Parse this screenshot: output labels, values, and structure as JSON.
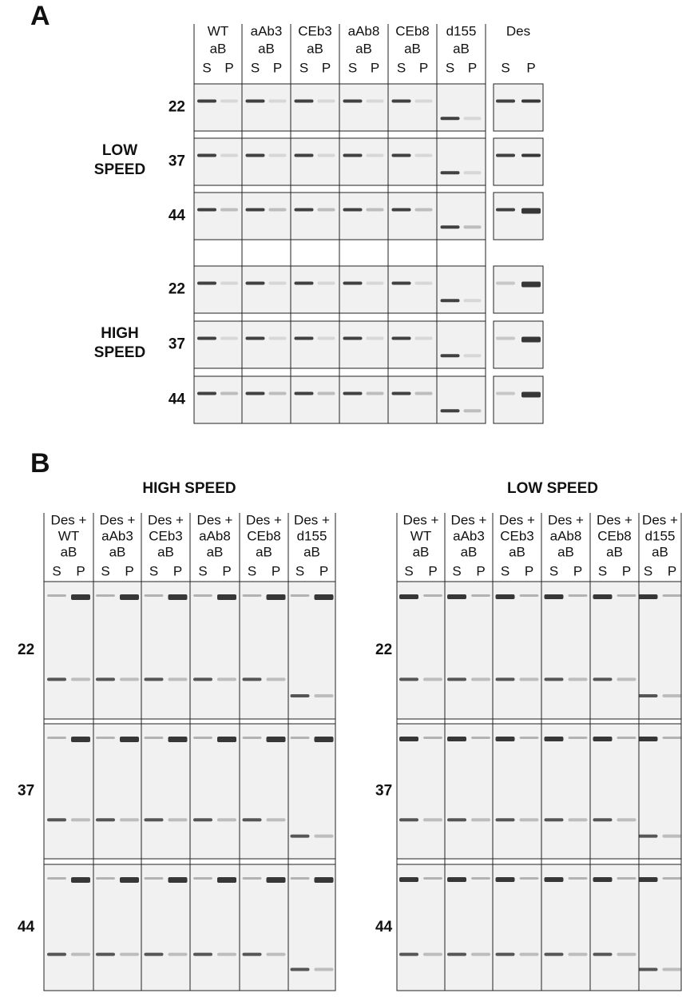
{
  "panel_a": {
    "label": "A",
    "columns": [
      [
        "WT",
        "aB"
      ],
      [
        "aAb3",
        "aB"
      ],
      [
        "CEb3",
        "aB"
      ],
      [
        "aAb8",
        "aB"
      ],
      [
        "CEb8",
        "aB"
      ],
      [
        "d155",
        "aB"
      ]
    ],
    "des_column": "Des",
    "lane_labels": [
      "S",
      "P"
    ],
    "groups": [
      {
        "label": [
          "LOW",
          "SPEED"
        ],
        "rows": [
          "22",
          "37",
          "44"
        ]
      },
      {
        "label": [
          "HIGH",
          "SPEED"
        ],
        "rows": [
          "22",
          "37",
          "44"
        ]
      }
    ]
  },
  "panel_b": {
    "label": "B",
    "lane_labels": [
      "S",
      "P"
    ],
    "gels": [
      {
        "title": "HIGH SPEED",
        "columns": [
          [
            "Des +",
            "WT",
            "aB"
          ],
          [
            "Des +",
            "aAb3",
            "aB"
          ],
          [
            "Des +",
            "CEb3",
            "aB"
          ],
          [
            "Des +",
            "aAb8",
            "aB"
          ],
          [
            "Des +",
            "CEb8",
            "aB"
          ],
          [
            "Des +",
            "d155",
            "aB"
          ]
        ],
        "rows": [
          "22",
          "37",
          "44"
        ]
      },
      {
        "title": "LOW SPEED",
        "columns": [
          [
            "Des +",
            "WT",
            "aB"
          ],
          [
            "Des +",
            "aAb3",
            "aB"
          ],
          [
            "Des +",
            "CEb3",
            "aB"
          ],
          [
            "Des +",
            "aAb8",
            "aB"
          ],
          [
            "Des +",
            "CEb8",
            "aB"
          ],
          [
            "Des +",
            "d155",
            "aB"
          ]
        ],
        "rows": [
          "22",
          "37",
          "44"
        ]
      }
    ]
  }
}
